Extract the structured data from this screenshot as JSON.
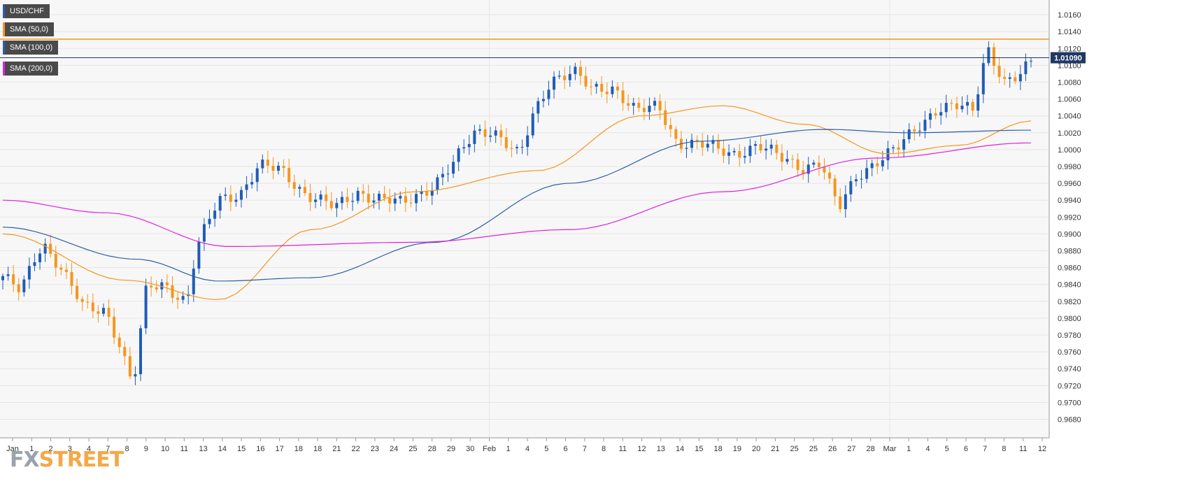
{
  "chart_data": {
    "type": "candlestick",
    "symbol": "USD/CHF",
    "ylim": [
      0.966,
      1.017
    ],
    "y_ticks": [
      "1.0160",
      "1.0140",
      "1.0120",
      "1.0100",
      "1.0080",
      "1.0060",
      "1.0040",
      "1.0020",
      "1.0000",
      "0.9980",
      "0.9960",
      "0.9940",
      "0.9920",
      "0.9900",
      "0.9880",
      "0.9860",
      "0.9840",
      "0.9820",
      "0.9800",
      "0.9780",
      "0.9760",
      "0.9740",
      "0.9720",
      "0.9700",
      "0.9680"
    ],
    "x_ticks": [
      "Jan",
      "1",
      "2",
      "3",
      "4",
      "7",
      "8",
      "9",
      "10",
      "11",
      "13",
      "14",
      "15",
      "16",
      "17",
      "18",
      "18",
      "21",
      "22",
      "23",
      "24",
      "25",
      "28",
      "29",
      "30",
      "Feb",
      "1",
      "4",
      "5",
      "6",
      "7",
      "8",
      "11",
      "12",
      "13",
      "14",
      "15",
      "18",
      "19",
      "20",
      "21",
      "25",
      "25",
      "26",
      "27",
      "28",
      "Mar",
      "1",
      "4",
      "5",
      "6",
      "7",
      "8",
      "11",
      "12"
    ],
    "current_price": 1.0109,
    "current_price_label": "1.01090",
    "resistance_level": 1.0131,
    "candles_count": 195,
    "key_prices": {
      "start": 0.985,
      "jan_high": 0.992,
      "jan_low": 0.9718,
      "feb_high": 1.0099,
      "late_feb_low": 0.9928,
      "march_high": 1.0124,
      "last": 1.0109
    },
    "series": [
      {
        "name": "SMA (50,0)",
        "color": "#f5961e",
        "start": 0.99,
        "mid_low": 0.9822,
        "end": 1.0034
      },
      {
        "name": "SMA (100,0)",
        "color": "#2b5fa8",
        "start": 0.9908,
        "mid_low": 0.9844,
        "end": 1.0023
      },
      {
        "name": "SMA (200,0)",
        "color": "#e020e0",
        "start": 0.994,
        "mid_low": 0.9885,
        "end": 1.0008
      }
    ],
    "grid": true,
    "legend": "top-left"
  },
  "legend": [
    {
      "label": "USD/CHF",
      "color": "#2b5fa8"
    },
    {
      "label": "SMA (50,0)",
      "color": "#f5961e"
    },
    {
      "label": "SMA (100,0)",
      "color": "#2b5fa8"
    },
    {
      "label": "SMA (200,0)",
      "color": "#e020e0"
    }
  ],
  "watermark": {
    "fx": "FX",
    "street": "STREET"
  },
  "colors": {
    "bull": "#1f5cb8",
    "bear": "#f5961e",
    "grid": "#e6e6e6",
    "background": "#f7f7f7",
    "axis_text": "#333333",
    "price_tag": "#1f3864",
    "resistance": "#f5961e"
  }
}
